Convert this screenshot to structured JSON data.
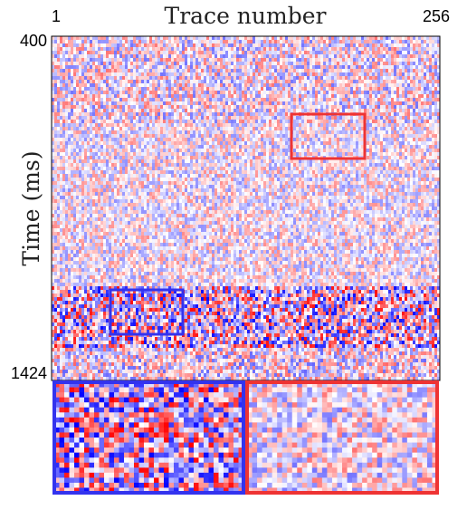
{
  "chart_data": {
    "type": "image",
    "x_label": "Trace number",
    "y_label": "Time (ms)",
    "xlim": [
      1,
      256
    ],
    "xticks": [
      1,
      256
    ],
    "ylim": [
      400,
      1424
    ],
    "yticks": [
      400,
      1424
    ],
    "y_inverted": true
  }
}
